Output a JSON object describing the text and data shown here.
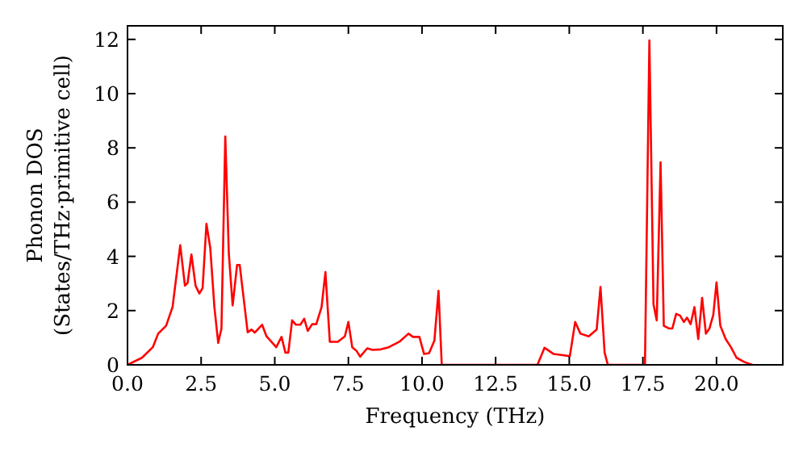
{
  "chart_data": {
    "type": "line",
    "xlabel": "Frequency (THz)",
    "ylabel": "Phonon DOS\n(States/THz·primitive cell)",
    "x": [
      0,
      0.49,
      0.86,
      1.04,
      1.31,
      1.53,
      1.79,
      1.95,
      2.04,
      2.17,
      2.31,
      2.44,
      2.55,
      2.68,
      2.81,
      2.95,
      3.08,
      3.19,
      3.32,
      3.44,
      3.57,
      3.72,
      3.81,
      4.08,
      4.21,
      4.32,
      4.57,
      4.72,
      5.05,
      5.23,
      5.36,
      5.46,
      5.59,
      5.72,
      5.87,
      6.0,
      6.12,
      6.27,
      6.41,
      6.59,
      6.72,
      6.87,
      7.14,
      7.38,
      7.5,
      7.63,
      7.78,
      7.9,
      8.14,
      8.32,
      8.6,
      8.87,
      9.23,
      9.54,
      9.69,
      9.91,
      10.07,
      10.24,
      10.42,
      10.56,
      10.67,
      13.92,
      14.16,
      14.47,
      15.02,
      15.2,
      15.38,
      15.66,
      15.93,
      16.06,
      16.2,
      16.31,
      17.57,
      17.72,
      17.86,
      17.97,
      18.1,
      18.21,
      18.38,
      18.5,
      18.63,
      18.76,
      18.89,
      19.0,
      19.12,
      19.25,
      19.38,
      19.51,
      19.64,
      19.76,
      19.89,
      20.0,
      20.13,
      20.31,
      20.49,
      20.68,
      20.95,
      21.22
    ],
    "series": [
      {
        "color": "#ff0000",
        "values": [
          0,
          0.26,
          0.65,
          1.15,
          1.44,
          2.13,
          4.41,
          2.92,
          3.02,
          4.07,
          2.92,
          2.63,
          2.83,
          5.2,
          4.31,
          2.13,
          0.81,
          1.34,
          8.42,
          4.11,
          2.19,
          3.68,
          3.68,
          1.2,
          1.3,
          1.19,
          1.48,
          1.05,
          0.65,
          1.03,
          0.45,
          0.45,
          1.64,
          1.48,
          1.48,
          1.7,
          1.25,
          1.5,
          1.5,
          2.13,
          3.42,
          0.85,
          0.85,
          1.05,
          1.58,
          0.65,
          0.51,
          0.3,
          0.61,
          0.55,
          0.57,
          0.65,
          0.85,
          1.15,
          1.03,
          1.03,
          0.4,
          0.43,
          0.89,
          2.73,
          0,
          0,
          0.63,
          0.4,
          0.32,
          1.58,
          1.15,
          1.05,
          1.3,
          2.87,
          0.45,
          0,
          0,
          11.96,
          2.23,
          1.64,
          7.47,
          1.44,
          1.34,
          1.34,
          1.88,
          1.82,
          1.58,
          1.74,
          1.5,
          2.13,
          0.95,
          2.47,
          1.15,
          1.34,
          1.84,
          3.04,
          1.44,
          0.95,
          0.65,
          0.26,
          0.1,
          0
        ]
      }
    ],
    "xlim": [
      0,
      22.25
    ],
    "ylim": [
      0,
      12.5
    ],
    "xticks": [
      {
        "value": 0,
        "label": "0.0"
      },
      {
        "value": 2.5,
        "label": "2.5"
      },
      {
        "value": 5,
        "label": "5.0"
      },
      {
        "value": 7.5,
        "label": "7.5"
      },
      {
        "value": 10,
        "label": "10.0"
      },
      {
        "value": 12.5,
        "label": "12.5"
      },
      {
        "value": 15,
        "label": "15.0"
      },
      {
        "value": 17.5,
        "label": "17.5"
      },
      {
        "value": 20,
        "label": "20.0"
      }
    ],
    "yticks": [
      0,
      2,
      4,
      6,
      8,
      10,
      12
    ],
    "grid": false,
    "marker": "none",
    "line_style": "solid"
  }
}
